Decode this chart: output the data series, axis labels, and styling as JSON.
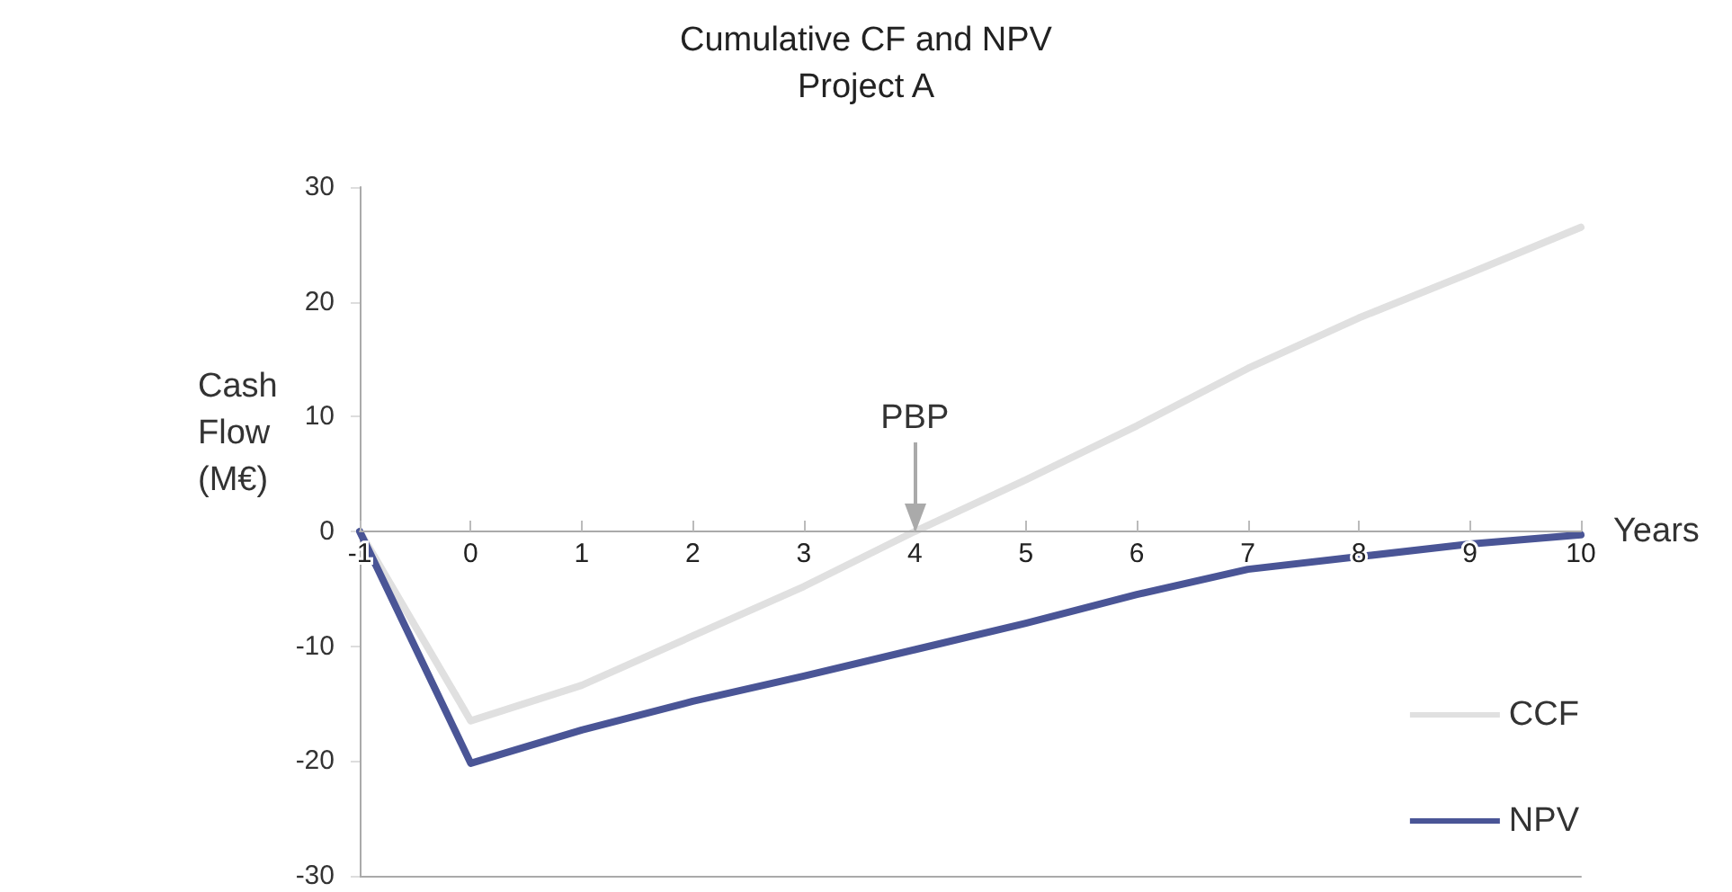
{
  "chart_data": {
    "type": "line",
    "title": "Cumulative CF and NPV",
    "subtitle": "Project A",
    "xlabel": "Years",
    "ylabel": "Cash\nFlow\n(M€)",
    "x": [
      -1,
      0,
      1,
      2,
      3,
      4,
      5,
      6,
      7,
      8,
      9,
      10
    ],
    "series": [
      {
        "name": "CCF",
        "color": "#e0e0e0",
        "values": [
          0,
          -16.5,
          -13.4,
          -9.1,
          -4.8,
          0,
          4.5,
          9.2,
          14.2,
          18.6,
          22.5,
          26.5
        ]
      },
      {
        "name": "NPV",
        "color": "#4a5596",
        "values": [
          0,
          -20.2,
          -17.3,
          -14.8,
          -12.6,
          -10.3,
          -8.0,
          -5.5,
          -3.3,
          -2.2,
          -1.1,
          -0.3
        ]
      }
    ],
    "xlim": [
      -1,
      10
    ],
    "xticks": [
      -1,
      0,
      1,
      2,
      3,
      4,
      5,
      6,
      7,
      8,
      9,
      10
    ],
    "ylim": [
      -30,
      30
    ],
    "yticks": [
      -30,
      -20,
      -10,
      0,
      10,
      20,
      30
    ],
    "annotations": [
      {
        "text": "PBP",
        "x": 4,
        "y": 0
      }
    ],
    "grid": false,
    "legend": "bottom right",
    "marker": "none",
    "line_style": "solid"
  }
}
